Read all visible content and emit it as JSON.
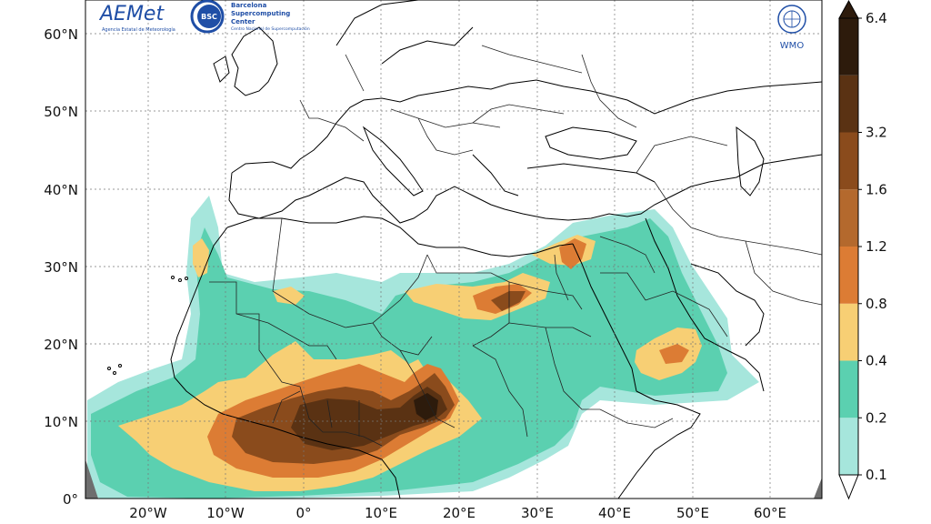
{
  "logos": {
    "aemet": {
      "name": "AEMet",
      "subtitle": "Agencia Estatal de Meteorología"
    },
    "bsc": {
      "badge": "BSC",
      "lines": [
        "Barcelona",
        "Supercomputing",
        "Center"
      ],
      "subtitle": "Centro Nacional de Supercomputación"
    },
    "wmo": {
      "name": "WMO"
    }
  },
  "axes": {
    "lat_labels": [
      "0°",
      "10°N",
      "20°N",
      "30°N",
      "40°N",
      "50°N",
      "60°N"
    ],
    "lon_labels": [
      "20°W",
      "10°W",
      "0°",
      "10°E",
      "20°E",
      "30°E",
      "40°E",
      "50°E",
      "60°E"
    ]
  },
  "colorbar": {
    "ticks": [
      "0.1",
      "0.2",
      "0.4",
      "0.8",
      "1.2",
      "1.6",
      "3.2",
      "6.4"
    ],
    "colors": [
      "#a6e6dc",
      "#5bd0b0",
      "#f7cf74",
      "#dc7c34",
      "#b4692d",
      "#8a4b1c",
      "#5a3213",
      "#2d1b0c"
    ]
  },
  "chart_data": {
    "type": "heatmap",
    "lat_range": [
      0,
      64
    ],
    "lon_range": [
      -28,
      67
    ],
    "gridlines": true,
    "colorbar_levels": [
      0.1,
      0.2,
      0.4,
      0.8,
      1.2,
      1.6,
      3.2,
      6.4
    ],
    "legend_placement": "right"
  }
}
